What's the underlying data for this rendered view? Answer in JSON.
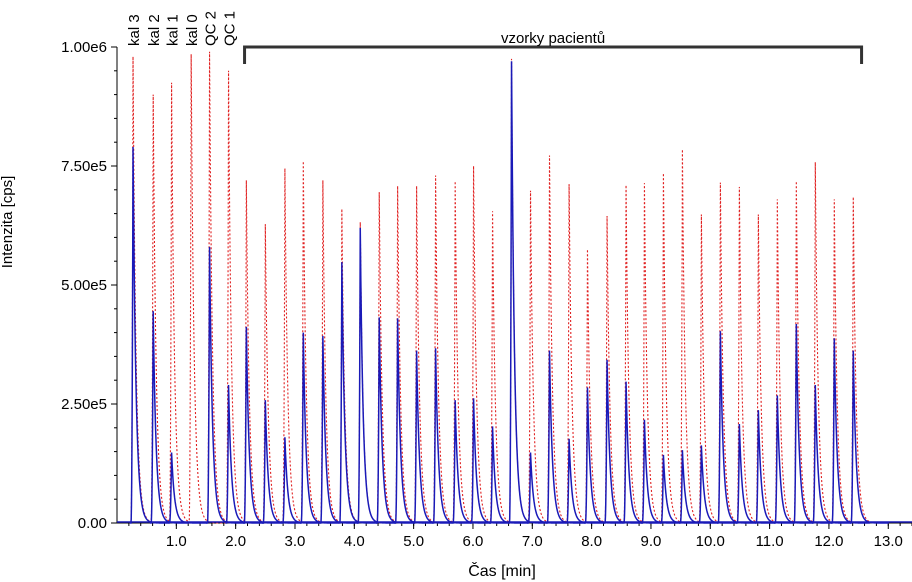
{
  "chart_data": {
    "type": "line",
    "title": "",
    "xlabel": "Čas [min]",
    "ylabel": "Intenzita [cps]",
    "xlim": [
      0.0,
      13.4
    ],
    "ylim": [
      0,
      1000000
    ],
    "x_ticks": [
      "1.0",
      "2.0",
      "3.0",
      "4.0",
      "5.0",
      "6.0",
      "7.0",
      "8.0",
      "9.0",
      "10.0",
      "11.0",
      "12.0",
      "13.0"
    ],
    "x_tick_values": [
      1,
      2,
      3,
      4,
      5,
      6,
      7,
      8,
      9,
      10,
      11,
      12,
      13
    ],
    "y_ticks": [
      "0.00",
      "2.50e5",
      "5.00e5",
      "7.50e5",
      "1.00e6"
    ],
    "y_tick_values": [
      0,
      250000,
      500000,
      750000,
      1000000
    ],
    "grid": false,
    "legend": "none",
    "series": [
      {
        "color": "#e02020",
        "style": "dotted",
        "x": [
          0.27,
          0.61,
          0.92,
          1.25,
          1.56,
          1.88,
          2.18,
          2.5,
          2.83,
          3.14,
          3.47,
          3.79,
          4.1,
          4.42,
          4.73,
          5.05,
          5.37,
          5.7,
          6.01,
          6.33,
          6.65,
          6.97,
          7.29,
          7.62,
          7.93,
          8.26,
          8.58,
          8.89,
          9.21,
          9.53,
          9.85,
          10.17,
          10.49,
          10.81,
          11.13,
          11.45,
          11.77,
          12.09,
          12.41
        ],
        "values": [
          980000,
          900000,
          925000,
          985000,
          990000,
          950000,
          720000,
          628000,
          745000,
          760000,
          720000,
          660000,
          632000,
          695000,
          708000,
          708000,
          730000,
          718000,
          750000,
          655000,
          975000,
          698000,
          772000,
          712000,
          575000,
          645000,
          710000,
          714000,
          735000,
          785000,
          648000,
          715000,
          706000,
          648000,
          680000,
          718000,
          758000,
          680000,
          685000
        ]
      },
      {
        "color": "#1a1ab8",
        "style": "solid",
        "x": [
          0.27,
          0.61,
          0.92,
          1.25,
          1.56,
          1.88,
          2.18,
          2.5,
          2.83,
          3.14,
          3.47,
          3.79,
          4.1,
          4.42,
          4.73,
          5.05,
          5.37,
          5.7,
          6.01,
          6.33,
          6.65,
          6.97,
          7.29,
          7.62,
          7.93,
          8.26,
          8.58,
          8.89,
          9.21,
          9.53,
          9.85,
          10.17,
          10.49,
          10.81,
          11.13,
          11.45,
          11.77,
          12.09,
          12.41
        ],
        "values": [
          790000,
          445000,
          148000,
          0,
          580000,
          290000,
          412000,
          258000,
          180000,
          400000,
          393000,
          548000,
          620000,
          432000,
          430000,
          362000,
          367000,
          258000,
          262000,
          203000,
          970000,
          148000,
          362000,
          177000,
          285000,
          343000,
          297000,
          217000,
          143000,
          153000,
          163000,
          403000,
          208000,
          237000,
          268000,
          418000,
          290000,
          388000,
          362000
        ]
      }
    ],
    "annotations": [
      {
        "text": "kal 3",
        "x": 0.27
      },
      {
        "text": "kal 2",
        "x": 0.61
      },
      {
        "text": "kal 1",
        "x": 0.92
      },
      {
        "text": "kal 0",
        "x": 1.25
      },
      {
        "text": "QC 2",
        "x": 1.56
      },
      {
        "text": "QC 1",
        "x": 1.88
      }
    ],
    "bracket": {
      "text": "vzorky pacientů",
      "x_start": 2.15,
      "x_end": 12.55
    }
  }
}
